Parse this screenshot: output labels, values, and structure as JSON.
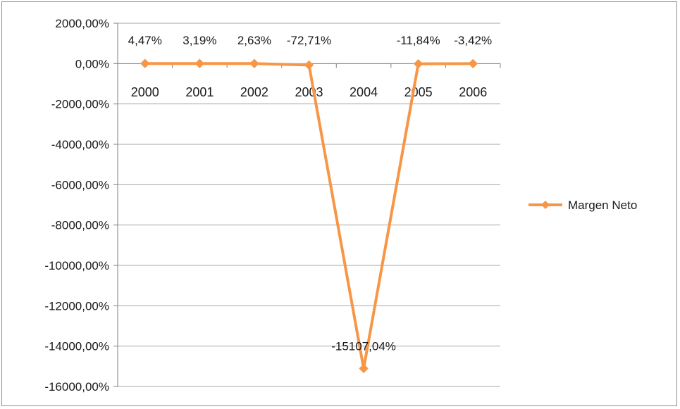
{
  "chart_data": {
    "type": "line",
    "title": "",
    "xlabel": "",
    "ylabel": "",
    "categories": [
      "2000",
      "2001",
      "2002",
      "2003",
      "2004",
      "2005",
      "2006"
    ],
    "series": [
      {
        "name": "Margen Neto",
        "values": [
          4.47,
          3.19,
          2.63,
          -72.71,
          -15107.04,
          -11.84,
          -3.42
        ],
        "labels": [
          "4,47%",
          "3,19%",
          "2,63%",
          "-72,71%",
          "-15107,04%",
          "-11,84%",
          "-3,42%"
        ],
        "color": "#f79646"
      }
    ],
    "ylim": [
      -16000,
      2000
    ],
    "yticks": [
      2000,
      0,
      -2000,
      -4000,
      -6000,
      -8000,
      -10000,
      -12000,
      -14000,
      -16000
    ],
    "ytick_labels": [
      "2000,00%",
      "0,00%",
      "-2000,00%",
      "-4000,00%",
      "-6000,00%",
      "-8000,00%",
      "-10000,00%",
      "-12000,00%",
      "-14000,00%",
      "-16000,00%"
    ],
    "grid": true,
    "legend": "right",
    "gridline_color": "#a6a6a6"
  }
}
